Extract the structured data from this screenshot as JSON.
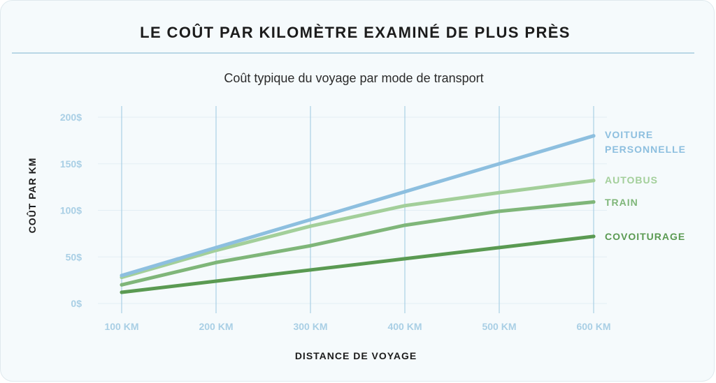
{
  "header": {
    "title": "LE COÛT PAR KILOMÈTRE EXAMINÉ DE PLUS PRÈS",
    "subtitle": "Coût typique du voyage par mode de transport"
  },
  "colors": {
    "background": "#f5fafc",
    "grid": "#a9d0e6",
    "tick": "#a9cfe5",
    "voiture": "#8dbfdf",
    "autobus": "#a3cf9a",
    "train": "#7fb679",
    "covoiturage": "#5a9a52"
  },
  "chart_data": {
    "type": "line",
    "title": "Coût typique du voyage par mode de transport",
    "xlabel": "DISTANCE DE VOYAGE",
    "ylabel": "COÛT PAR KM",
    "x": [
      100,
      200,
      300,
      400,
      500,
      600
    ],
    "x_tick_labels": [
      "100 KM",
      "200 KM",
      "300 KM",
      "400 KM",
      "500 KM",
      "600 KM"
    ],
    "y_ticks": [
      0,
      50,
      100,
      150,
      200
    ],
    "y_tick_labels": [
      "0$",
      "50$",
      "100$",
      "150$",
      "200$"
    ],
    "ylim": [
      0,
      200
    ],
    "grid": "vertical",
    "legend": "right, inline at line ends",
    "series": [
      {
        "name": "VOITURE PERSONNELLE",
        "name_lines": [
          "VOITURE",
          "PERSONNELLE"
        ],
        "color_key": "voiture",
        "values": [
          30,
          60,
          90,
          120,
          150,
          180
        ]
      },
      {
        "name": "AUTOBUS",
        "name_lines": [
          "AUTOBUS"
        ],
        "color_key": "autobus",
        "values": [
          28,
          57,
          83,
          105,
          119,
          132
        ]
      },
      {
        "name": "TRAIN",
        "name_lines": [
          "TRAIN"
        ],
        "color_key": "train",
        "values": [
          20,
          44,
          62,
          84,
          99,
          109
        ]
      },
      {
        "name": "COVOITURAGE",
        "name_lines": [
          "COVOITURAGE"
        ],
        "color_key": "covoiturage",
        "values": [
          12,
          24,
          36,
          48,
          60,
          72
        ]
      }
    ]
  }
}
